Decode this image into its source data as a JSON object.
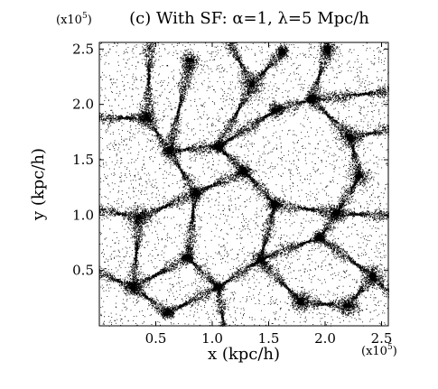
{
  "chart_data": {
    "type": "scatter",
    "title": "(c) With SF: α=1, λ=5 Mpc/h",
    "xlabel": "x (kpc/h)",
    "ylabel": "y (kpc/h)",
    "x_multiplier": {
      "base": "(x10",
      "exp": "5",
      "close": ")"
    },
    "y_multiplier": {
      "base": "(x10",
      "exp": "5",
      "close": ")"
    },
    "xlim": [
      0,
      2.56
    ],
    "ylim": [
      0,
      2.56
    ],
    "xticks": [
      0.5,
      1.0,
      1.5,
      2.0,
      2.5
    ],
    "xtick_labels": [
      "0.5",
      "1.0",
      "1.5",
      "2.0",
      "2.5"
    ],
    "yticks": [
      0.5,
      1.0,
      1.5,
      2.0,
      2.5
    ],
    "ytick_labels": [
      "0.5",
      "1.0",
      "1.5",
      "2.0",
      "2.5"
    ],
    "grid": false,
    "marker_color": "#000000",
    "note": "dark matter particle distribution; filaments and halos",
    "halos": [
      [
        1.62,
        2.48
      ],
      [
        2.02,
        2.5
      ],
      [
        0.8,
        2.4
      ],
      [
        1.35,
        2.18
      ],
      [
        1.88,
        2.05
      ],
      [
        1.56,
        1.95
      ],
      [
        0.42,
        1.88
      ],
      [
        2.22,
        1.7
      ],
      [
        1.05,
        1.62
      ],
      [
        0.62,
        1.58
      ],
      [
        1.28,
        1.4
      ],
      [
        2.3,
        1.35
      ],
      [
        0.85,
        1.2
      ],
      [
        1.55,
        1.1
      ],
      [
        2.1,
        1.02
      ],
      [
        0.35,
        0.98
      ],
      [
        1.95,
        0.8
      ],
      [
        0.78,
        0.62
      ],
      [
        1.42,
        0.6
      ],
      [
        2.42,
        0.45
      ],
      [
        1.05,
        0.35
      ],
      [
        0.3,
        0.35
      ],
      [
        1.78,
        0.22
      ],
      [
        2.2,
        0.18
      ],
      [
        0.6,
        0.12
      ]
    ],
    "filaments": [
      [
        [
          0.0,
          1.88
        ],
        [
          0.42,
          1.88
        ],
        [
          0.62,
          1.58
        ],
        [
          1.05,
          1.62
        ],
        [
          1.56,
          1.95
        ],
        [
          1.88,
          2.05
        ],
        [
          2.56,
          2.12
        ]
      ],
      [
        [
          0.8,
          2.4
        ],
        [
          0.62,
          1.58
        ],
        [
          0.85,
          1.2
        ],
        [
          0.78,
          0.62
        ],
        [
          1.05,
          0.35
        ],
        [
          1.1,
          0.0
        ]
      ],
      [
        [
          1.62,
          2.48
        ],
        [
          1.35,
          2.18
        ],
        [
          1.05,
          1.62
        ],
        [
          1.28,
          1.4
        ],
        [
          1.55,
          1.1
        ],
        [
          1.42,
          0.6
        ],
        [
          1.78,
          0.22
        ]
      ],
      [
        [
          2.02,
          2.5
        ],
        [
          1.88,
          2.05
        ],
        [
          2.22,
          1.7
        ],
        [
          2.3,
          1.35
        ],
        [
          2.1,
          1.02
        ],
        [
          1.95,
          0.8
        ],
        [
          2.42,
          0.45
        ],
        [
          2.56,
          0.3
        ]
      ],
      [
        [
          0.0,
          1.05
        ],
        [
          0.35,
          0.98
        ],
        [
          0.85,
          1.2
        ],
        [
          1.28,
          1.4
        ]
      ],
      [
        [
          0.35,
          0.98
        ],
        [
          0.3,
          0.35
        ],
        [
          0.6,
          0.12
        ],
        [
          1.05,
          0.35
        ],
        [
          1.42,
          0.6
        ],
        [
          1.95,
          0.8
        ]
      ],
      [
        [
          1.55,
          1.1
        ],
        [
          2.1,
          1.02
        ],
        [
          2.56,
          1.0
        ]
      ],
      [
        [
          1.78,
          0.22
        ],
        [
          2.2,
          0.18
        ],
        [
          2.42,
          0.45
        ]
      ],
      [
        [
          0.0,
          0.48
        ],
        [
          0.3,
          0.35
        ],
        [
          0.78,
          0.62
        ]
      ],
      [
        [
          2.22,
          1.7
        ],
        [
          2.56,
          1.78
        ]
      ],
      [
        [
          1.35,
          2.18
        ],
        [
          1.15,
          2.56
        ]
      ],
      [
        [
          0.42,
          1.88
        ],
        [
          0.45,
          2.56
        ]
      ]
    ]
  }
}
